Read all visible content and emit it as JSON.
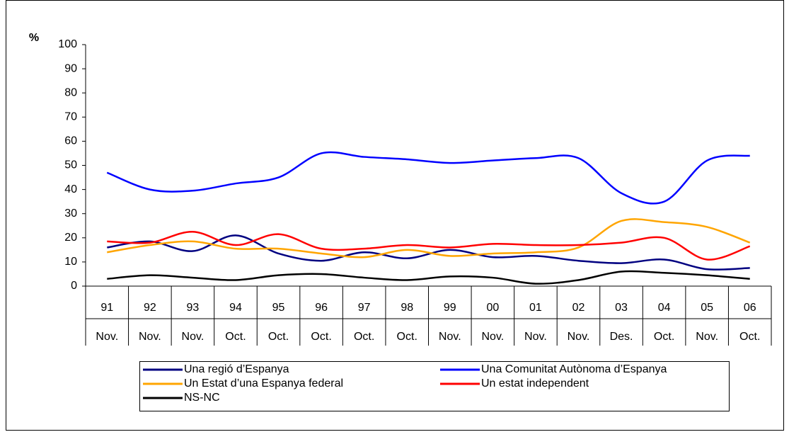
{
  "chart_data": {
    "type": "line",
    "y_axis_label": "%",
    "categories": [
      "91",
      "92",
      "93",
      "94",
      "95",
      "96",
      "97",
      "98",
      "99",
      "00",
      "01",
      "02",
      "03",
      "04",
      "05",
      "06"
    ],
    "category_months": [
      "Nov.",
      "Nov.",
      "Nov.",
      "Oct.",
      "Oct.",
      "Oct.",
      "Oct.",
      "Oct.",
      "Nov.",
      "Nov.",
      "Nov.",
      "Nov.",
      "Des.",
      "Oct.",
      "Nov.",
      "Oct."
    ],
    "series": [
      {
        "name": "Una regió d’Espanya",
        "color": "#000080",
        "values": [
          16,
          18.5,
          14.5,
          21,
          13.5,
          10.5,
          14,
          11.5,
          15,
          12,
          12.5,
          10.5,
          9.5,
          11,
          7,
          7.5
        ]
      },
      {
        "name": "Una Comunitat Autònoma d’Espanya",
        "color": "#0000ff",
        "values": [
          47,
          40,
          39.5,
          42.5,
          45,
          55,
          53.5,
          52.5,
          51,
          52,
          53,
          53,
          38.5,
          35,
          52,
          54
        ]
      },
      {
        "name": "Un Estat d’una Espanya federal",
        "color": "#ffa500",
        "values": [
          14,
          17,
          18.5,
          15.5,
          15.5,
          13.5,
          12,
          15,
          12.5,
          13.5,
          14,
          16,
          27,
          26.5,
          24.5,
          18
        ]
      },
      {
        "name": "Un estat independent",
        "color": "#ff0000",
        "values": [
          18.5,
          18,
          22.5,
          17,
          21.5,
          15.5,
          15.5,
          17,
          16,
          17.5,
          17,
          17,
          18,
          20,
          11,
          16.5
        ]
      },
      {
        "name": "NS-NC",
        "color": "#000000",
        "values": [
          3,
          4.5,
          3.5,
          2.5,
          4.5,
          5,
          3.5,
          2.5,
          4,
          3.5,
          1,
          2.5,
          6,
          5.5,
          4.5,
          3
        ]
      }
    ],
    "ylim": [
      0,
      100
    ],
    "yticks": [
      0,
      10,
      20,
      30,
      40,
      50,
      60,
      70,
      80,
      90,
      100
    ]
  }
}
